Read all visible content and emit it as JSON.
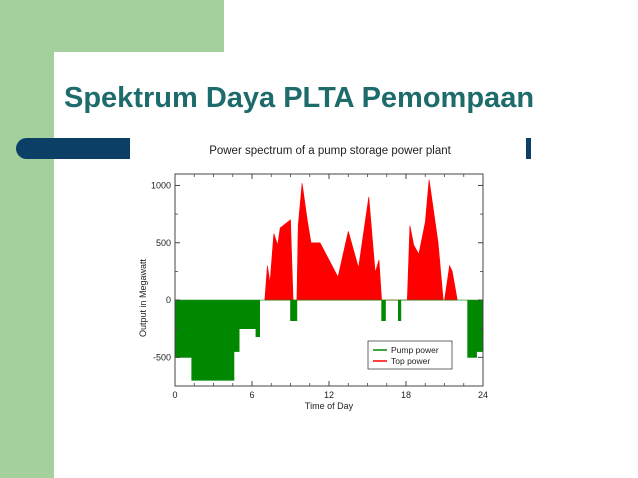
{
  "slide": {
    "title": "Spektrum Daya PLTA Pemompaan"
  },
  "colors": {
    "top_power": "#ff0000",
    "pump_power": "#008800",
    "title": "#1e6b6b",
    "accent_bar": "#0b3f66",
    "side_strip": "#a3d09c"
  },
  "chart_data": {
    "type": "area",
    "title": "Power spectrum of a pump storage power plant",
    "xlabel": "Time of Day",
    "ylabel": "Output in Megawatt",
    "xlim": [
      0,
      24
    ],
    "ylim": [
      -750,
      1100
    ],
    "xticks": [
      0,
      6,
      12,
      18,
      24
    ],
    "yticks": [
      -500,
      0,
      500,
      1000
    ],
    "grid": false,
    "legend": {
      "position": "bottom-right",
      "entries": [
        "Pump power",
        "Top power"
      ]
    },
    "series": [
      {
        "name": "Top power",
        "color": "#ff0000",
        "points": [
          [
            7,
            0
          ],
          [
            7.2,
            300
          ],
          [
            7.4,
            150
          ],
          [
            7.7,
            580
          ],
          [
            8,
            480
          ],
          [
            8.2,
            630
          ],
          [
            9,
            700
          ],
          [
            9.2,
            0
          ],
          [
            9.5,
            0
          ],
          [
            9.6,
            650
          ],
          [
            9.9,
            1020
          ],
          [
            10.3,
            700
          ],
          [
            10.6,
            500
          ],
          [
            11.3,
            500
          ],
          [
            12,
            350
          ],
          [
            12.7,
            200
          ],
          [
            13.5,
            600
          ],
          [
            14.3,
            280
          ],
          [
            15.1,
            900
          ],
          [
            15.6,
            240
          ],
          [
            15.9,
            350
          ],
          [
            16.1,
            0
          ],
          [
            18.1,
            0
          ],
          [
            18.3,
            650
          ],
          [
            18.6,
            480
          ],
          [
            19,
            400
          ],
          [
            19.5,
            680
          ],
          [
            19.8,
            1050
          ],
          [
            20.5,
            500
          ],
          [
            20.9,
            0
          ],
          [
            21,
            0
          ],
          [
            21.4,
            300
          ],
          [
            21.6,
            250
          ],
          [
            22,
            0
          ]
        ]
      },
      {
        "name": "Pump power",
        "color": "#008800",
        "points": [
          [
            0,
            0
          ],
          [
            0,
            -500
          ],
          [
            1.3,
            -500
          ],
          [
            1.3,
            -700
          ],
          [
            4.6,
            -700
          ],
          [
            4.6,
            -450
          ],
          [
            5,
            -450
          ],
          [
            5,
            -250
          ],
          [
            6.3,
            -250
          ],
          [
            6.3,
            -320
          ],
          [
            6.6,
            -320
          ],
          [
            6.6,
            0
          ],
          [
            9,
            0
          ],
          [
            9,
            -180
          ],
          [
            9.5,
            -180
          ],
          [
            9.5,
            0
          ],
          [
            16.1,
            0
          ],
          [
            16.1,
            -180
          ],
          [
            16.4,
            -180
          ],
          [
            16.4,
            0
          ],
          [
            17.4,
            0
          ],
          [
            17.4,
            -180
          ],
          [
            17.6,
            -180
          ],
          [
            17.6,
            0
          ],
          [
            22.8,
            0
          ],
          [
            22.8,
            -500
          ],
          [
            23.5,
            -500
          ],
          [
            23.5,
            -450
          ],
          [
            24,
            -450
          ],
          [
            24,
            0
          ]
        ]
      }
    ]
  }
}
